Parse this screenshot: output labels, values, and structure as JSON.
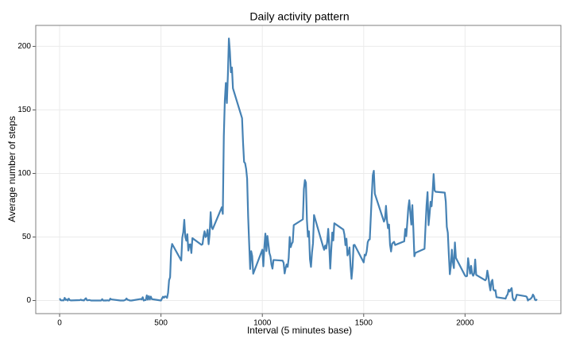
{
  "chart_data": {
    "type": "line",
    "title": "Daily activity pattern",
    "x_label": "Interval (5 minutes base)",
    "y_label": "Average number of steps",
    "xlim": [
      -117.75,
      2472.75
    ],
    "xticks": [
      0,
      500,
      1000,
      1500,
      2000
    ],
    "ylim": [
      -10.3,
      216.5
    ],
    "yticks": [
      0,
      50,
      100,
      150,
      200
    ],
    "grid": true,
    "x": [
      0,
      5,
      10,
      15,
      20,
      25,
      30,
      35,
      40,
      45,
      50,
      55,
      100,
      105,
      110,
      115,
      120,
      125,
      130,
      135,
      140,
      145,
      150,
      155,
      200,
      205,
      210,
      215,
      220,
      225,
      230,
      235,
      240,
      245,
      250,
      255,
      300,
      305,
      310,
      315,
      320,
      325,
      330,
      335,
      340,
      345,
      350,
      355,
      400,
      405,
      410,
      415,
      420,
      425,
      430,
      435,
      440,
      445,
      450,
      455,
      500,
      505,
      510,
      515,
      520,
      525,
      530,
      535,
      540,
      545,
      550,
      555,
      600,
      605,
      610,
      615,
      620,
      625,
      630,
      635,
      640,
      645,
      650,
      655,
      700,
      705,
      710,
      715,
      720,
      725,
      730,
      735,
      740,
      745,
      750,
      755,
      800,
      805,
      810,
      815,
      820,
      825,
      830,
      835,
      840,
      845,
      850,
      855,
      900,
      905,
      910,
      915,
      920,
      925,
      930,
      935,
      940,
      945,
      950,
      955,
      1000,
      1005,
      1010,
      1015,
      1020,
      1025,
      1030,
      1035,
      1040,
      1045,
      1050,
      1055,
      1100,
      1105,
      1110,
      1115,
      1120,
      1125,
      1130,
      1135,
      1140,
      1145,
      1150,
      1155,
      1200,
      1205,
      1210,
      1215,
      1220,
      1225,
      1230,
      1235,
      1240,
      1245,
      1250,
      1255,
      1300,
      1305,
      1310,
      1315,
      1320,
      1325,
      1330,
      1335,
      1340,
      1345,
      1350,
      1355,
      1400,
      1405,
      1410,
      1415,
      1420,
      1425,
      1430,
      1435,
      1440,
      1445,
      1450,
      1455,
      1500,
      1505,
      1510,
      1515,
      1520,
      1525,
      1530,
      1535,
      1540,
      1545,
      1550,
      1555,
      1600,
      1605,
      1610,
      1615,
      1620,
      1625,
      1630,
      1635,
      1640,
      1645,
      1650,
      1655,
      1700,
      1705,
      1710,
      1715,
      1720,
      1725,
      1730,
      1735,
      1740,
      1745,
      1750,
      1755,
      1800,
      1805,
      1810,
      1815,
      1820,
      1825,
      1830,
      1835,
      1840,
      1845,
      1850,
      1855,
      1900,
      1905,
      1910,
      1915,
      1920,
      1925,
      1930,
      1935,
      1940,
      1945,
      1950,
      1955,
      2000,
      2005,
      2010,
      2015,
      2020,
      2025,
      2030,
      2035,
      2040,
      2045,
      2050,
      2055,
      2100,
      2105,
      2110,
      2115,
      2120,
      2125,
      2130,
      2135,
      2140,
      2145,
      2150,
      2155,
      2200,
      2205,
      2210,
      2215,
      2220,
      2225,
      2230,
      2235,
      2240,
      2245,
      2250,
      2255,
      2300,
      2305,
      2310,
      2315,
      2320,
      2325,
      2330,
      2335,
      2340,
      2345,
      2350,
      2355
    ],
    "series": [
      {
        "color": "#4682b4",
        "values": [
          1.7,
          0.3,
          0.1,
          0.2,
          0.1,
          2.1,
          0.5,
          0.9,
          0,
          1.5,
          0.3,
          0.1,
          0.3,
          0.7,
          0.2,
          0.3,
          0,
          1.1,
          1.8,
          0.2,
          0.2,
          0.4,
          0.3,
          0,
          0,
          0,
          1.1,
          0,
          0,
          0.1,
          0,
          0.2,
          0,
          0,
          1.5,
          0.9,
          0,
          0,
          0,
          0,
          0.2,
          0.6,
          1.6,
          0.6,
          0.5,
          0.1,
          0,
          0,
          1.2,
          0.9,
          2.6,
          0,
          0.3,
          0.4,
          4.1,
          0.7,
          3.5,
          0.8,
          3.1,
          1.1,
          0,
          1.6,
          3,
          2.2,
          3.3,
          3,
          2.1,
          6.1,
          16,
          18.3,
          39.5,
          44.5,
          31.5,
          49.3,
          53.8,
          63.5,
          50,
          47.1,
          52.2,
          39.3,
          44,
          44.2,
          37.4,
          49.1,
          43.8,
          44.4,
          50.5,
          54.5,
          49.9,
          51,
          55.7,
          44.3,
          52.3,
          69.5,
          58,
          56.2,
          73.4,
          68.2,
          129.4,
          157.5,
          171.2,
          155.4,
          177.3,
          206.2,
          195.9,
          179.6,
          183.4,
          167,
          143.5,
          124,
          109.1,
          108.1,
          103.7,
          95.9,
          66.2,
          45.2,
          24.8,
          38.8,
          35,
          21.1,
          40,
          26.9,
          42.4,
          52.7,
          38.9,
          50.8,
          44.3,
          37.4,
          34.7,
          28.3,
          25.1,
          31.9,
          31.4,
          29.7,
          21.3,
          25.5,
          28.4,
          26.5,
          33.4,
          50,
          42,
          44.6,
          46,
          59.3,
          63.9,
          87.7,
          94.8,
          92.8,
          63.4,
          50.2,
          54.5,
          32.4,
          26.5,
          37.7,
          45.1,
          67.3,
          42.3,
          39.9,
          43.3,
          40.9,
          46.2,
          56.4,
          42.8,
          25.1,
          40,
          53.5,
          47.3,
          60.8,
          55.8,
          51.9,
          43.6,
          48.7,
          35.5,
          37.5,
          41.8,
          27.5,
          17.1,
          26.1,
          43.6,
          43.8,
          30,
          36.1,
          35.5,
          38.8,
          46,
          47.8,
          48.1,
          65.3,
          82.9,
          98.7,
          102.1,
          84,
          62.1,
          64.1,
          74.5,
          63.2,
          56.9,
          59.8,
          43.9,
          38.6,
          44.7,
          45.5,
          46.2,
          43.7,
          46.6,
          56.3,
          50.7,
          61.2,
          72.7,
          78.9,
          68.9,
          59.7,
          75.1,
          56.5,
          34.8,
          37.5,
          40.7,
          58,
          74.7,
          85.3,
          59.3,
          67.8,
          77.7,
          74.2,
          85.3,
          99.5,
          86.6,
          85.6,
          84.9,
          77.8,
          58,
          53.4,
          36.3,
          20.7,
          27.4,
          40,
          30.2,
          25.5,
          45.7,
          33.5,
          19.6,
          19,
          19.3,
          33.3,
          26.8,
          21.2,
          27.3,
          21.3,
          19.5,
          21.3,
          32.3,
          20.2,
          15.9,
          17.2,
          23.5,
          19.2,
          12.5,
          8,
          14.7,
          16.3,
          8.7,
          7.8,
          8.1,
          2.6,
          1.5,
          3.7,
          4.8,
          8.5,
          7.1,
          8.7,
          9.8,
          2.2,
          0.3,
          0.1,
          1.6,
          4.6,
          3.3,
          2.8,
          0,
          0.8,
          1,
          1.6,
          2.6,
          4.7,
          3.3,
          0.6,
          0.2,
          1.1
        ]
      }
    ]
  }
}
